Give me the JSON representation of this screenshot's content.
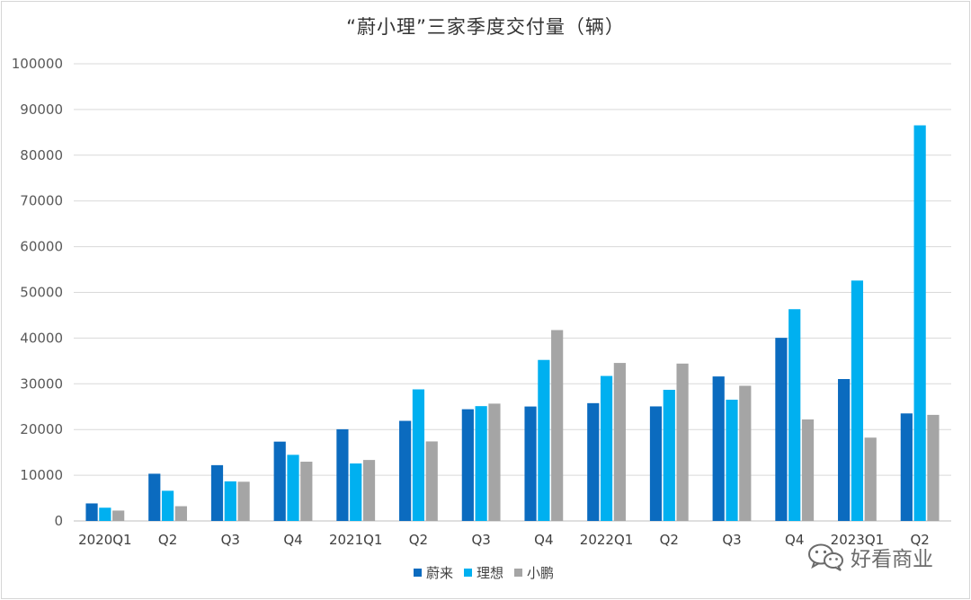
{
  "chart_data": {
    "type": "bar",
    "title": "“蔚小理”三家季度交付量（辆）",
    "categories": [
      "2020Q1",
      "Q2",
      "Q3",
      "Q4",
      "2021Q1",
      "Q2",
      "Q3",
      "Q4",
      "2022Q1",
      "Q2",
      "Q3",
      "Q4",
      "2023Q1",
      "Q2"
    ],
    "series": [
      {
        "name": "蔚来",
        "color": "#0b6bbf",
        "values": [
          3838,
          10331,
          12206,
          17353,
          20060,
          21896,
          24439,
          25034,
          25768,
          25059,
          31607,
          40052,
          31041,
          23520
        ]
      },
      {
        "name": "理想",
        "color": "#00b0f0",
        "values": [
          2901,
          6604,
          8660,
          14464,
          12579,
          28781,
          25116,
          35221,
          31716,
          28687,
          26524,
          46319,
          52584,
          86533
        ]
      },
      {
        "name": "小鹏",
        "color": "#a5a5a5",
        "values": [
          2271,
          3228,
          8578,
          12964,
          13340,
          17398,
          25666,
          41751,
          34561,
          34422,
          29570,
          22204,
          18230,
          23205
        ]
      }
    ],
    "ylim": [
      0,
      100000
    ],
    "yticks": [
      "0",
      "10000",
      "20000",
      "30000",
      "40000",
      "50000",
      "60000",
      "70000",
      "80000",
      "90000",
      "100000"
    ],
    "grid": true,
    "legend_position": "bottom"
  },
  "watermark": {
    "text": "好看商业",
    "icon": "wechat-icon"
  }
}
